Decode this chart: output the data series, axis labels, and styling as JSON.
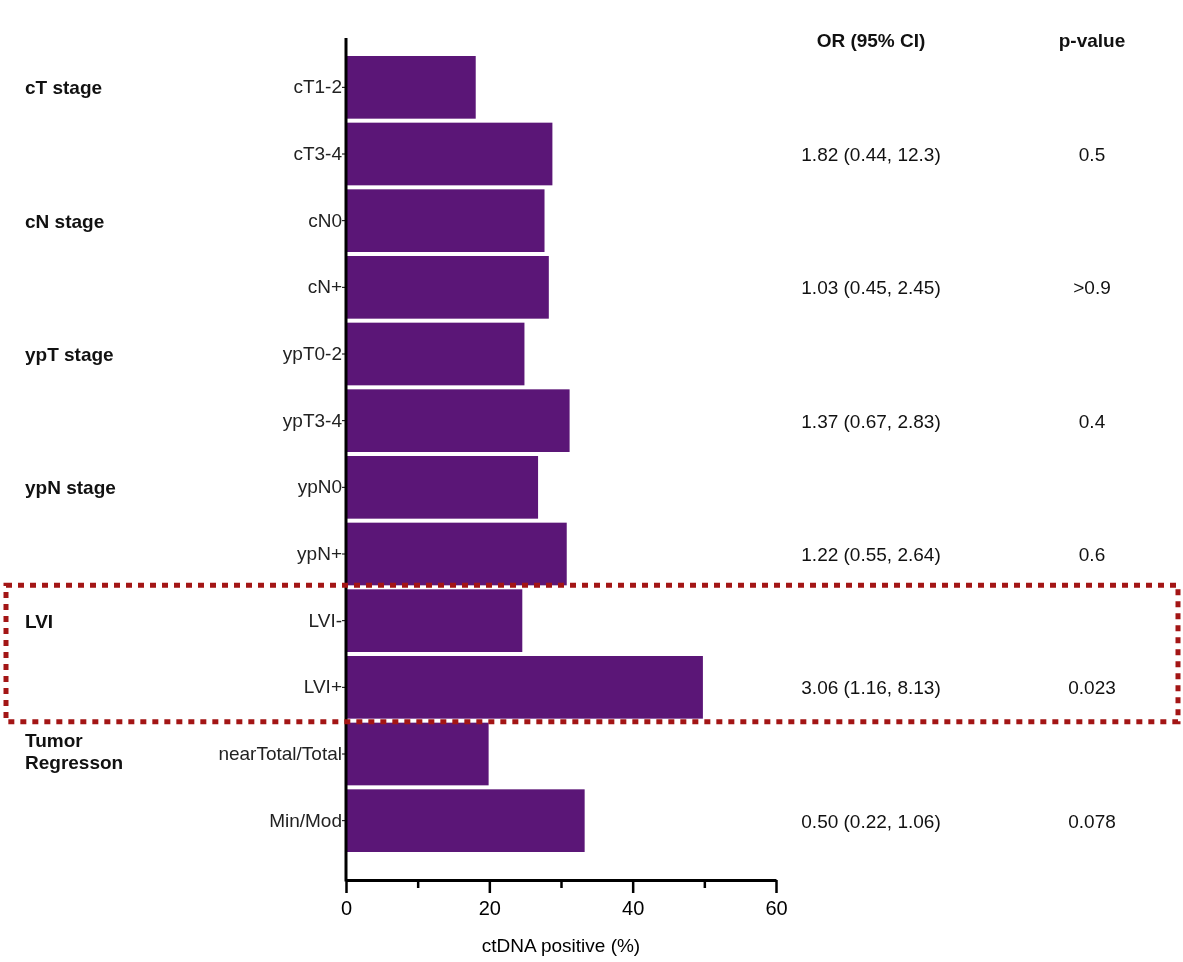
{
  "chart_data": {
    "type": "bar",
    "orientation": "horizontal",
    "xlabel": "ctDNA positive (%)",
    "categories": [
      "cT1-2",
      "cT3-4",
      "cN0",
      "cN+",
      "ypT0-2",
      "ypT3-4",
      "ypN0",
      "ypN+",
      "LVI-",
      "LVI+",
      "nearTotal/Total",
      "Min/Mod"
    ],
    "values": [
      18.1,
      28.8,
      27.7,
      28.3,
      24.9,
      31.2,
      26.8,
      30.8,
      24.6,
      49.8,
      19.9,
      33.3
    ],
    "color": "#5b1677",
    "xlim": [
      0,
      60
    ],
    "xticks": [
      0,
      {
        "value": 10,
        "label": null
      },
      20,
      {
        "value": 30,
        "label": null
      },
      40,
      {
        "value": 50,
        "label": null
      },
      60
    ],
    "grid": false,
    "annotations": [
      "OR (95% CI)",
      "p-value",
      "cT stage",
      "1.82 (0.44, 12.3)",
      "0.5",
      "cN stage",
      "1.03 (0.45, 2.45)",
      ">0.9",
      "ypT stage",
      "1.37 (0.67, 2.83)",
      "0.4",
      "ypN stage",
      "1.22 (0.55, 2.64)",
      "0.6",
      "LVI",
      "3.06 (1.16, 8.13)",
      "0.023",
      "Tumor\nRegresson",
      "0.50 (0.22, 1.06)",
      "0.078"
    ]
  }
}
